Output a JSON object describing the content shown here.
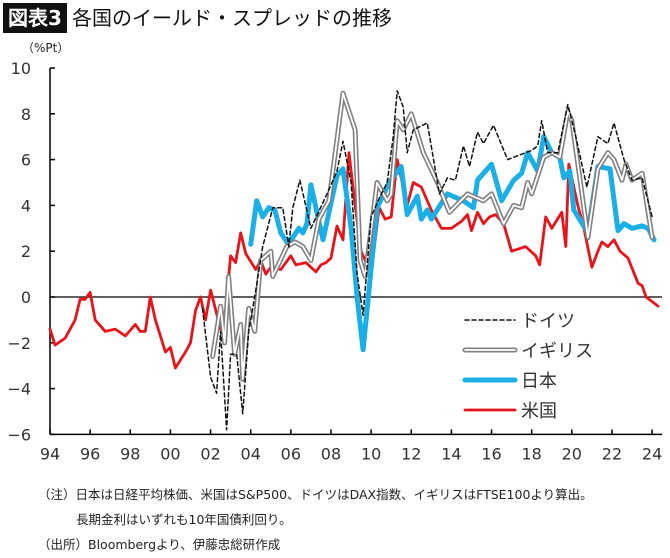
{
  "figure_label": "図表3",
  "title": "各国のイールド・スプレッドの推移",
  "notes": {
    "line1": "（注）日本は日経平均株価、米国はS&P500、ドイツはDAX指数、イギリスはFTSE100より算出。",
    "line2": "長期金利はいずれも10年国債利回り。",
    "source": "（出所）Bloombergより、伊藤忠総研作成"
  },
  "chart_data": {
    "type": "line",
    "title": "各国のイールド・スプレッドの推移",
    "ylabel": "（%Pt）",
    "xlabel": "",
    "xlim": [
      1994,
      2025
    ],
    "ylim": [
      -6,
      10
    ],
    "yticks": [
      10,
      8,
      6,
      4,
      2,
      0,
      -2,
      -4,
      -6
    ],
    "xtick_labels": [
      "94",
      "96",
      "98",
      "00",
      "02",
      "04",
      "06",
      "08",
      "10",
      "12",
      "14",
      "16",
      "18",
      "20",
      "22",
      "24"
    ],
    "xtick_years": [
      1994,
      1996,
      1998,
      2000,
      2002,
      2004,
      2006,
      2008,
      2010,
      2012,
      2014,
      2016,
      2018,
      2020,
      2022,
      2024
    ],
    "grid": false,
    "legend_position": "bottom-right",
    "series": [
      {
        "name": "ドイツ",
        "color": "#111111",
        "style": "dashed",
        "x": [
          2001.6,
          2002.0,
          2002.3,
          2002.5,
          2002.8,
          2003.0,
          2003.3,
          2003.6,
          2003.9,
          2004.2,
          2004.6,
          2005.1,
          2005.6,
          2005.9,
          2006.1,
          2006.45,
          2007.0,
          2007.8,
          2008.3,
          2008.6,
          2009.0,
          2009.3,
          2009.6,
          2010.0,
          2010.4,
          2010.8,
          2011.1,
          2011.3,
          2011.6,
          2011.8,
          2012.1,
          2012.8,
          2013.4,
          2013.8,
          2014.2,
          2014.6,
          2014.9,
          2015.3,
          2015.6,
          2016.1,
          2016.8,
          2017.4,
          2018.0,
          2018.3,
          2018.5,
          2018.8,
          2019.3,
          2019.8,
          2020.2,
          2020.75,
          2021.3,
          2021.8,
          2022.1,
          2022.6,
          2023.0,
          2023.5,
          2024.0
        ],
        "y": [
          -0.5,
          -3.5,
          -4.2,
          -1.5,
          -5.8,
          -2.5,
          -2.5,
          -5.1,
          -1.5,
          0.0,
          2.2,
          3.9,
          3.9,
          2.2,
          3.9,
          5.1,
          3.0,
          4.5,
          5.5,
          6.8,
          5.0,
          1.0,
          -0.8,
          3.5,
          4.3,
          5.0,
          7.0,
          9.0,
          8.3,
          6.3,
          7.3,
          7.6,
          4.5,
          5.2,
          5.1,
          6.6,
          5.7,
          7.2,
          6.7,
          7.5,
          6.0,
          6.2,
          6.4,
          6.6,
          7.7,
          6.3,
          6.3,
          8.4,
          7.0,
          4.8,
          7.0,
          6.7,
          7.6,
          6.0,
          5.1,
          5.2,
          3.5
        ]
      },
      {
        "name": "イギリス",
        "color": "#808080",
        "style": "double",
        "x": [
          2002.1,
          2002.5,
          2002.7,
          2002.9,
          2003.2,
          2003.5,
          2003.6,
          2003.9,
          2004.2,
          2004.5,
          2005.0,
          2005.1,
          2005.8,
          2006.2,
          2006.6,
          2007.0,
          2007.4,
          2007.9,
          2008.6,
          2009.2,
          2009.45,
          2009.7,
          2010.3,
          2010.8,
          2011.0,
          2011.3,
          2011.6,
          2012.0,
          2012.6,
          2013.3,
          2013.9,
          2014.8,
          2015.6,
          2016.0,
          2016.6,
          2017.1,
          2017.5,
          2017.8,
          2018.0,
          2018.6,
          2019.0,
          2019.4,
          2019.8,
          2020.0,
          2020.4,
          2020.8,
          2021.3,
          2021.8,
          2022.1,
          2022.5,
          2022.7,
          2023.0,
          2023.5,
          2024.0
        ],
        "y": [
          -2.6,
          -0.4,
          -2.0,
          0.9,
          -2.5,
          -1.2,
          -3.6,
          -0.5,
          -1.5,
          1.6,
          2.0,
          0.9,
          2.2,
          2.4,
          2.2,
          1.6,
          3.4,
          4.2,
          8.9,
          7.3,
          1.6,
          0.9,
          5.0,
          4.2,
          4.5,
          7.7,
          7.3,
          8.0,
          6.3,
          5.0,
          3.7,
          4.5,
          4.2,
          4.5,
          3.2,
          4.0,
          3.9,
          5.0,
          4.5,
          6.1,
          6.3,
          6.1,
          8.1,
          7.7,
          5.2,
          2.6,
          5.6,
          6.3,
          6.0,
          5.1,
          5.8,
          5.1,
          5.4,
          2.6
        ]
      },
      {
        "name": "日本",
        "color": "#1AAFE6",
        "style": "thick",
        "x": [
          2004.0,
          2004.3,
          2004.6,
          2004.9,
          2005.2,
          2005.5,
          2005.8,
          2006.1,
          2006.4,
          2006.6,
          2006.8,
          2007.0,
          2007.4,
          2007.6,
          2007.85,
          2008.1,
          2008.3,
          2008.6,
          2009.0,
          2009.3,
          2009.6,
          2010.3,
          2010.9,
          2011.5,
          2011.8,
          2012.3,
          2012.5,
          2012.8,
          2013.0,
          2013.8,
          2014.6,
          2015.1,
          2015.3,
          2016.0,
          2016.5,
          2017.1,
          2017.5,
          2017.8,
          2018.3,
          2018.6,
          2019.0,
          2019.4,
          2019.6,
          2019.9,
          2020.1,
          2020.8,
          2021.3,
          2021.9,
          2022.3,
          2022.6,
          2023.0,
          2023.5,
          2023.8,
          2024.1
        ],
        "y": [
          2.3,
          4.2,
          3.5,
          3.9,
          3.8,
          2.8,
          2.4,
          2.6,
          3.0,
          2.8,
          3.2,
          4.9,
          3.3,
          2.5,
          3.5,
          4.5,
          5.3,
          5.6,
          3.0,
          0.0,
          -2.3,
          3.9,
          5.0,
          5.7,
          3.6,
          4.4,
          3.4,
          3.8,
          3.4,
          4.5,
          4.2,
          3.9,
          5.1,
          5.8,
          4.2,
          5.1,
          5.4,
          6.3,
          5.5,
          7.0,
          6.3,
          6.1,
          5.2,
          5.5,
          3.8,
          2.8,
          5.7,
          5.6,
          2.9,
          3.2,
          3.0,
          3.1,
          3.0,
          2.5
        ]
      },
      {
        "name": "米国",
        "color": "#E8141A",
        "style": "solid",
        "x": [
          1994.0,
          1994.25,
          1994.75,
          1995.25,
          1995.5,
          1995.75,
          1996.0,
          1996.25,
          1996.75,
          1997.25,
          1997.75,
          1998.25,
          1998.5,
          1998.75,
          1999.0,
          1999.25,
          1999.75,
          2000.0,
          2000.25,
          2000.75,
          2001.0,
          2001.25,
          2001.5,
          2001.75,
          2002.0,
          2002.5,
          2002.75,
          2003.0,
          2003.25,
          2003.5,
          2003.75,
          2004.25,
          2004.5,
          2004.75,
          2005.0,
          2005.5,
          2006.0,
          2006.25,
          2006.75,
          2007.25,
          2007.5,
          2007.75,
          2008.0,
          2008.3,
          2008.6,
          2008.9,
          2009.2,
          2009.5,
          2010.0,
          2010.4,
          2010.7,
          2011.0,
          2011.3,
          2011.8,
          2012.1,
          2012.5,
          2013.0,
          2013.5,
          2014.0,
          2014.5,
          2014.8,
          2015.0,
          2015.3,
          2015.6,
          2015.9,
          2016.2,
          2016.6,
          2017.0,
          2017.7,
          2018.2,
          2018.4,
          2018.7,
          2019.0,
          2019.5,
          2019.7,
          2019.85,
          2020.3,
          2020.6,
          2021.0,
          2021.3,
          2021.5,
          2021.8,
          2022.1,
          2022.4,
          2022.8,
          2023.3,
          2023.5,
          2023.7,
          2024.0,
          2024.3
        ],
        "y": [
          -1.4,
          -2.1,
          -1.8,
          -1.0,
          -0.1,
          -0.1,
          0.2,
          -1.0,
          -1.5,
          -1.4,
          -1.7,
          -1.2,
          -1.5,
          -1.5,
          0.0,
          -1.0,
          -2.4,
          -2.2,
          -3.1,
          -2.4,
          -2.0,
          -0.6,
          0.0,
          -1.0,
          0.3,
          -1.4,
          -0.6,
          1.8,
          1.5,
          2.8,
          1.9,
          1.2,
          1.6,
          1.0,
          1.3,
          1.2,
          1.8,
          1.4,
          1.5,
          1.1,
          1.4,
          1.5,
          1.7,
          3.1,
          2.5,
          6.3,
          4.0,
          2.0,
          1.0,
          3.9,
          3.4,
          3.5,
          6.0,
          4.0,
          5.0,
          4.8,
          3.8,
          3.0,
          3.0,
          3.3,
          3.6,
          2.9,
          3.7,
          3.2,
          3.5,
          3.6,
          3.2,
          2.0,
          2.2,
          1.8,
          1.4,
          3.5,
          3.0,
          3.7,
          2.2,
          5.8,
          4.0,
          3.0,
          1.3,
          2.0,
          2.4,
          2.2,
          2.5,
          2.0,
          1.7,
          0.6,
          0.5,
          0.0,
          -0.2,
          -0.4
        ]
      }
    ]
  }
}
